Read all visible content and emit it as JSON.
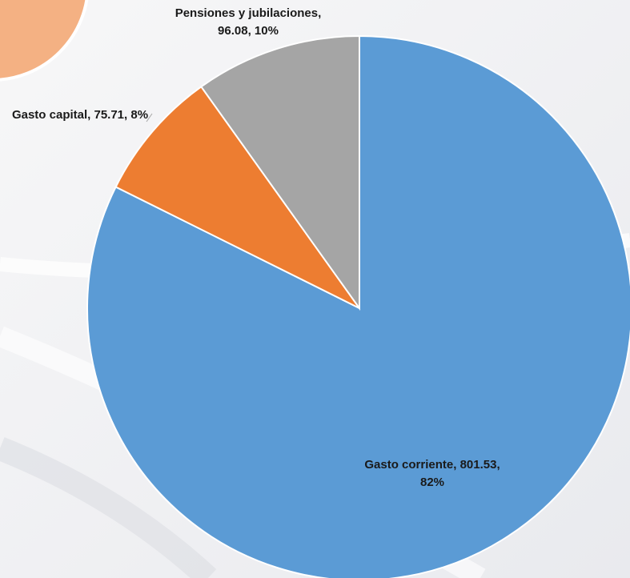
{
  "chart_data": {
    "type": "pie",
    "values": [
      801.53,
      75.71,
      96.08
    ],
    "value_labels": [
      "Gasto corriente, 801.53, 82%",
      "Gasto capital, 75.71, 8%",
      "Pensiones y jubilaciones, 96.08, 10%"
    ],
    "colors": [
      "#5b9bd5",
      "#ed7d31",
      "#a5a5a5"
    ]
  }
}
